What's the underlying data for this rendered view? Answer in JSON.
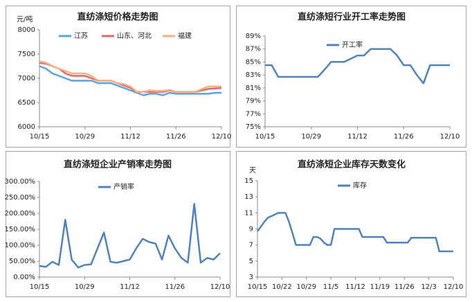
{
  "chart_data": [
    {
      "type": "line",
      "title": "直纺涤短价格走势图",
      "ylabel": "元/吨",
      "categories": [
        "10/15",
        null,
        null,
        null,
        null,
        null,
        null,
        "10/29",
        null,
        null,
        null,
        null,
        null,
        null,
        "11/12",
        null,
        null,
        null,
        null,
        null,
        null,
        "11/26",
        null,
        null,
        null,
        null,
        null,
        null,
        "12/10"
      ],
      "series": [
        {
          "name": "江苏",
          "color": "#5ba3e0",
          "values": [
            7250,
            7200,
            7100,
            7050,
            7000,
            6950,
            6950,
            6950,
            6950,
            6900,
            6900,
            6900,
            6850,
            6800,
            6750,
            6700,
            6650,
            6680,
            6680,
            6650,
            6700,
            6680,
            6680,
            6680,
            6680,
            6680,
            6680,
            6700,
            6700
          ]
        },
        {
          "name": "山东、河北",
          "color": "#d9696b",
          "values": [
            7320,
            7300,
            7250,
            7200,
            7100,
            7050,
            7050,
            7050,
            7000,
            6950,
            6950,
            6950,
            6900,
            6850,
            6800,
            6720,
            6720,
            6720,
            6720,
            6720,
            6750,
            6720,
            6720,
            6720,
            6720,
            6750,
            6780,
            6790,
            6800
          ]
        },
        {
          "name": "福建",
          "color": "#f5b183",
          "values": [
            7350,
            7320,
            7250,
            7200,
            7150,
            7100,
            7100,
            7100,
            7050,
            6950,
            6950,
            6950,
            6900,
            6880,
            6830,
            6720,
            6720,
            6750,
            6740,
            6740,
            6760,
            6720,
            6720,
            6720,
            6720,
            6780,
            6830,
            6830,
            6830
          ]
        }
      ],
      "ylim": [
        6000,
        8000
      ],
      "yticks": [
        6000,
        6500,
        7000,
        7500,
        8000
      ],
      "grid": false
    },
    {
      "type": "line",
      "title": "直纺涤短行业开工率走势图",
      "categories": [
        "10/15",
        null,
        null,
        null,
        null,
        null,
        null,
        "10/29",
        null,
        null,
        null,
        null,
        null,
        null,
        "11/12",
        null,
        null,
        null,
        null,
        null,
        null,
        "11/26",
        null,
        null,
        null,
        null,
        null,
        null,
        "12/10"
      ],
      "series": [
        {
          "name": "开工率",
          "color": "#4f81bd",
          "values": [
            84.5,
            84.5,
            82.7,
            82.7,
            82.7,
            82.7,
            82.7,
            82.7,
            82.7,
            83.8,
            85,
            85,
            85,
            85.5,
            86,
            86,
            87,
            87,
            87,
            87,
            86,
            84.5,
            84.5,
            83,
            81.7,
            84.5,
            84.5,
            84.5,
            84.5
          ]
        }
      ],
      "ylim": [
        75,
        89
      ],
      "yticks": [
        {
          "value": 75,
          "label": "75%"
        },
        {
          "value": 77,
          "label": "77%"
        },
        {
          "value": 79,
          "label": "79%"
        },
        {
          "value": 81,
          "label": "81%"
        },
        {
          "value": 83,
          "label": "83%"
        },
        {
          "value": 85,
          "label": "85%"
        },
        {
          "value": 87,
          "label": "87%"
        },
        {
          "value": 89,
          "label": "89%"
        }
      ],
      "grid": false
    },
    {
      "type": "line",
      "title": "直纺涤短企业产销率走势图",
      "categories": [
        "10/15",
        null,
        null,
        null,
        null,
        null,
        null,
        "10/29",
        null,
        null,
        null,
        null,
        null,
        null,
        "11/12",
        null,
        null,
        null,
        null,
        null,
        null,
        "11/26",
        null,
        null,
        null,
        null,
        null,
        null,
        "12/10"
      ],
      "series": [
        {
          "name": "产销率",
          "color": "#4f81bd",
          "values": [
            35,
            32,
            48,
            38,
            180,
            55,
            30,
            38,
            40,
            90,
            140,
            48,
            45,
            50,
            55,
            90,
            120,
            110,
            105,
            55,
            130,
            90,
            60,
            45,
            230,
            45,
            60,
            55,
            75
          ]
        }
      ],
      "ylim": [
        0,
        300
      ],
      "yticks": [
        {
          "value": 0,
          "label": "0.00%"
        },
        {
          "value": 50,
          "label": "50.00%"
        },
        {
          "value": 100,
          "label": "100.00%"
        },
        {
          "value": 150,
          "label": "150.00%"
        },
        {
          "value": 200,
          "label": "200.00%"
        },
        {
          "value": 250,
          "label": "250.00%"
        },
        {
          "value": 300,
          "label": "300.00%"
        }
      ],
      "grid": false
    },
    {
      "type": "line",
      "title": "直纺涤短企业库存天数变化",
      "ylabel": "天",
      "categories": [
        "10/15",
        null,
        null,
        null,
        null,
        null,
        null,
        "10/22",
        null,
        null,
        null,
        null,
        null,
        null,
        "10/29",
        null,
        null,
        null,
        null,
        null,
        null,
        "11/5",
        null,
        null,
        null,
        null,
        null,
        null,
        "11/12",
        null,
        null,
        null,
        null,
        null,
        null,
        "11/19",
        null,
        null,
        null,
        null,
        null,
        null,
        "11/26",
        null,
        null,
        null,
        null,
        null,
        null,
        "12/3",
        null,
        null,
        null,
        null,
        null,
        null,
        "12/10"
      ],
      "series": [
        {
          "name": "库存",
          "color": "#4f81bd",
          "values": [
            8.7,
            9.3,
            9.9,
            10.4,
            10.6,
            10.8,
            11,
            11,
            11,
            9.9,
            8.5,
            7,
            7,
            7,
            7,
            7,
            8,
            8,
            7.8,
            7.3,
            7,
            7,
            9,
            9,
            9,
            9,
            9,
            9,
            9,
            9,
            8,
            8,
            8,
            8,
            8,
            8,
            8,
            7.3,
            7.3,
            7.3,
            7.3,
            7.3,
            7.3,
            7.3,
            7.9,
            7.9,
            7.9,
            7.9,
            7.9,
            7.9,
            7.9,
            7.9,
            6.2,
            6.2,
            6.2,
            6.2,
            6.2
          ]
        }
      ],
      "ylim": [
        3,
        15
      ],
      "yticks": [
        3,
        5,
        7,
        9,
        11,
        13,
        15
      ],
      "grid": false
    }
  ]
}
